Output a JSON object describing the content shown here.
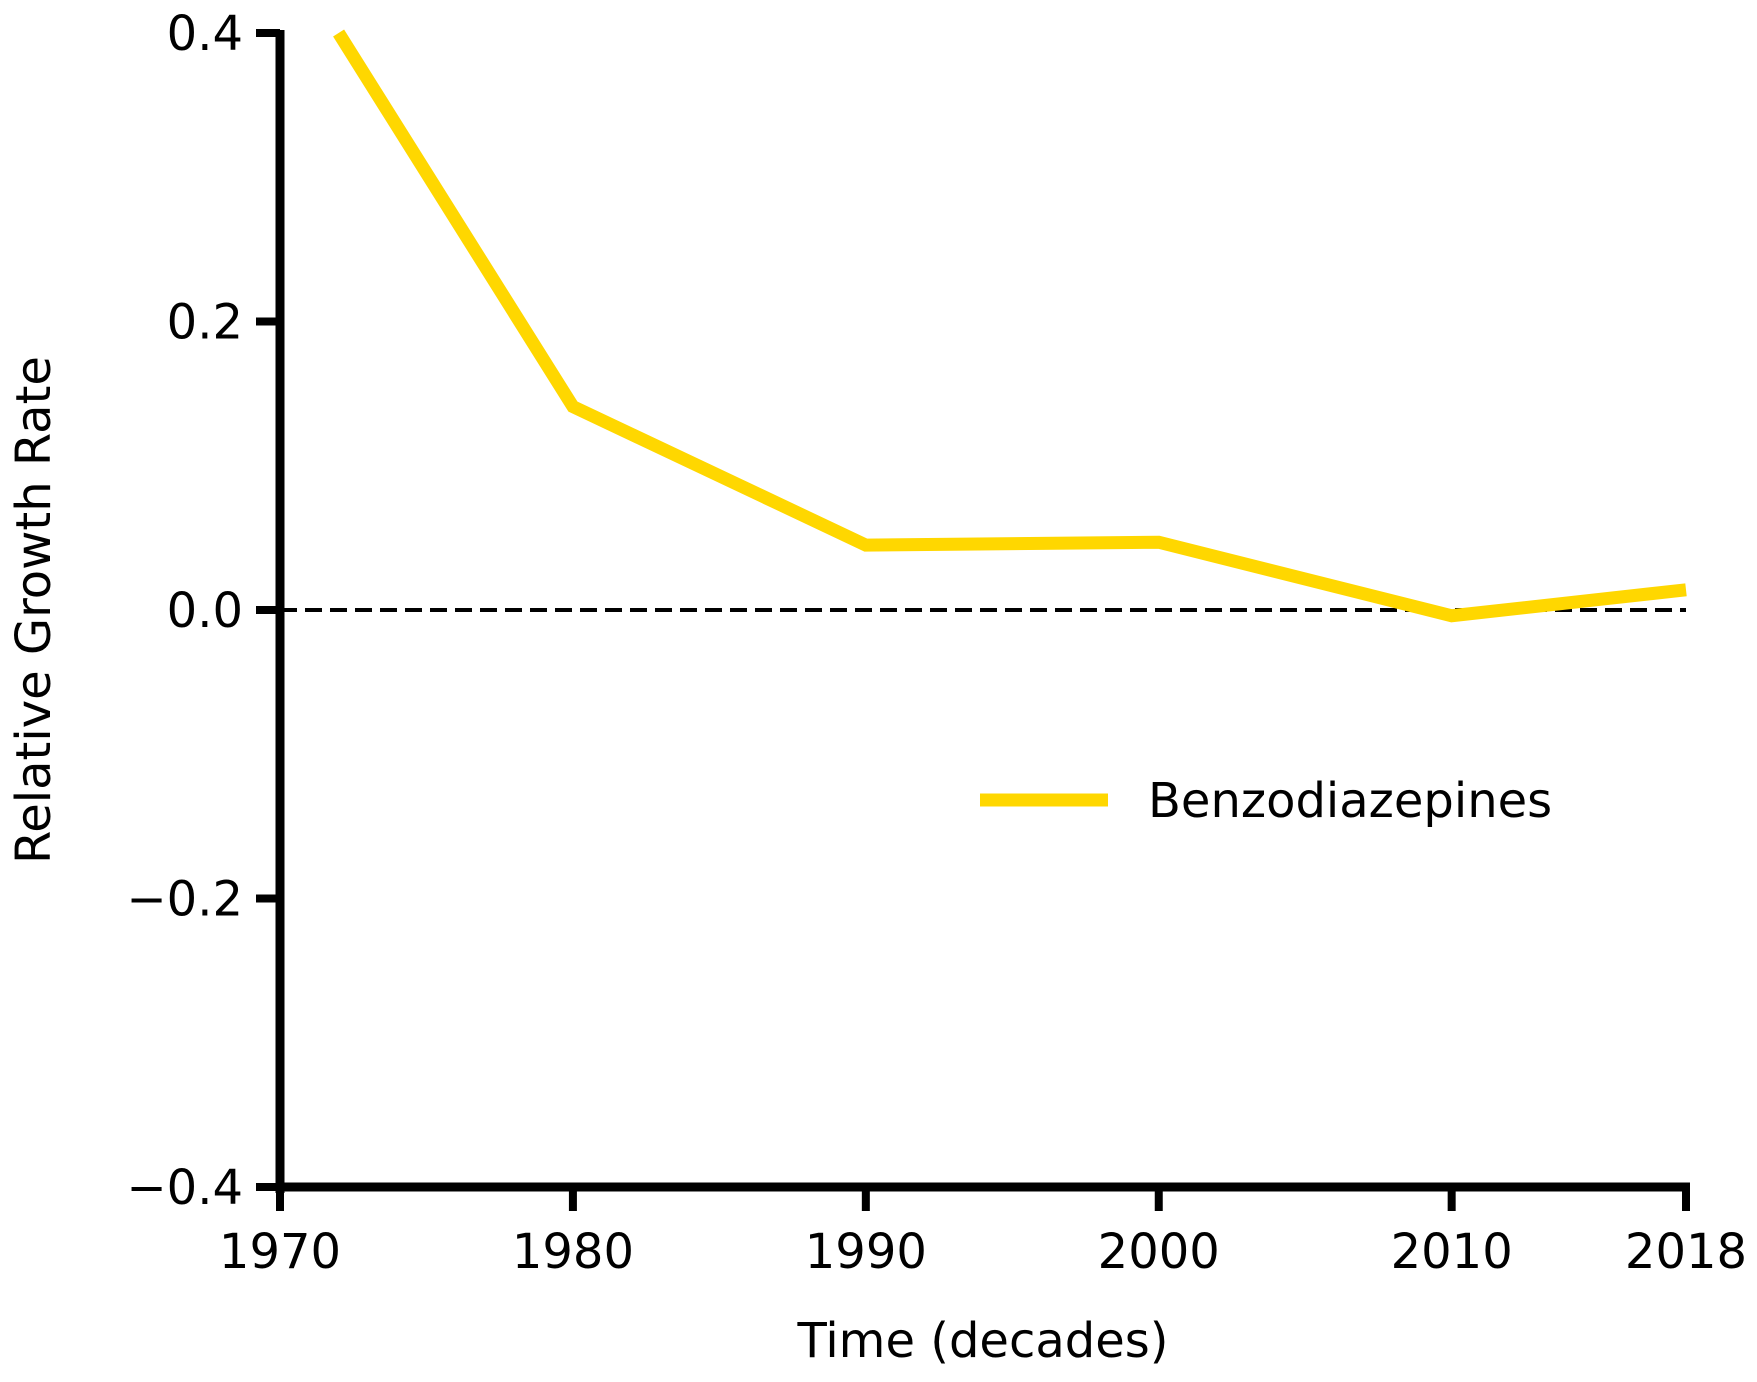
{
  "chart_data": {
    "type": "line",
    "title": "",
    "xlabel": "Time (decades)",
    "ylabel": "Relative Growth Rate",
    "x": [
      1972,
      1980,
      1990,
      2000,
      2010,
      2018
    ],
    "series": [
      {
        "name": "Benzodiazepines",
        "color": "#FFD700",
        "values": [
          0.4,
          0.141,
          0.045,
          0.047,
          -0.004,
          0.014
        ]
      }
    ],
    "xlim": [
      1970,
      2018
    ],
    "ylim": [
      -0.4,
      0.4
    ],
    "xticks": [
      1970,
      1980,
      1990,
      2000,
      2010,
      2018
    ],
    "xtick_labels": [
      "1970",
      "1980",
      "1990",
      "2000",
      "2010",
      "2018"
    ],
    "yticks": [
      -0.4,
      -0.2,
      0.0,
      0.2,
      0.4
    ],
    "ytick_labels": [
      "−0.4",
      "−0.2",
      "0.0",
      "0.2",
      "0.4"
    ],
    "reference_line": {
      "y": 0.0,
      "style": "dashed",
      "color": "#000000"
    },
    "grid": false,
    "legend_position": "center-right"
  }
}
